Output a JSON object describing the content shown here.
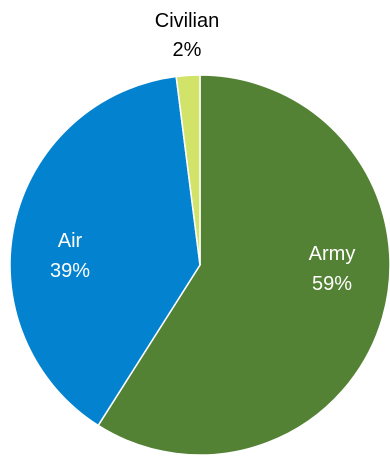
{
  "chart_data": {
    "type": "pie",
    "title": "",
    "slices": [
      {
        "label": "Army",
        "percent_label": "59%",
        "value": 59,
        "color": "#548235"
      },
      {
        "label": "Air",
        "percent_label": "39%",
        "value": 39,
        "color": "#0383cf"
      },
      {
        "label": "Civilian",
        "percent_label": "2%",
        "value": 2,
        "color": "#d2e36a"
      }
    ],
    "label_colors": {
      "inside": "#ffffff",
      "outside": "#000000"
    }
  }
}
